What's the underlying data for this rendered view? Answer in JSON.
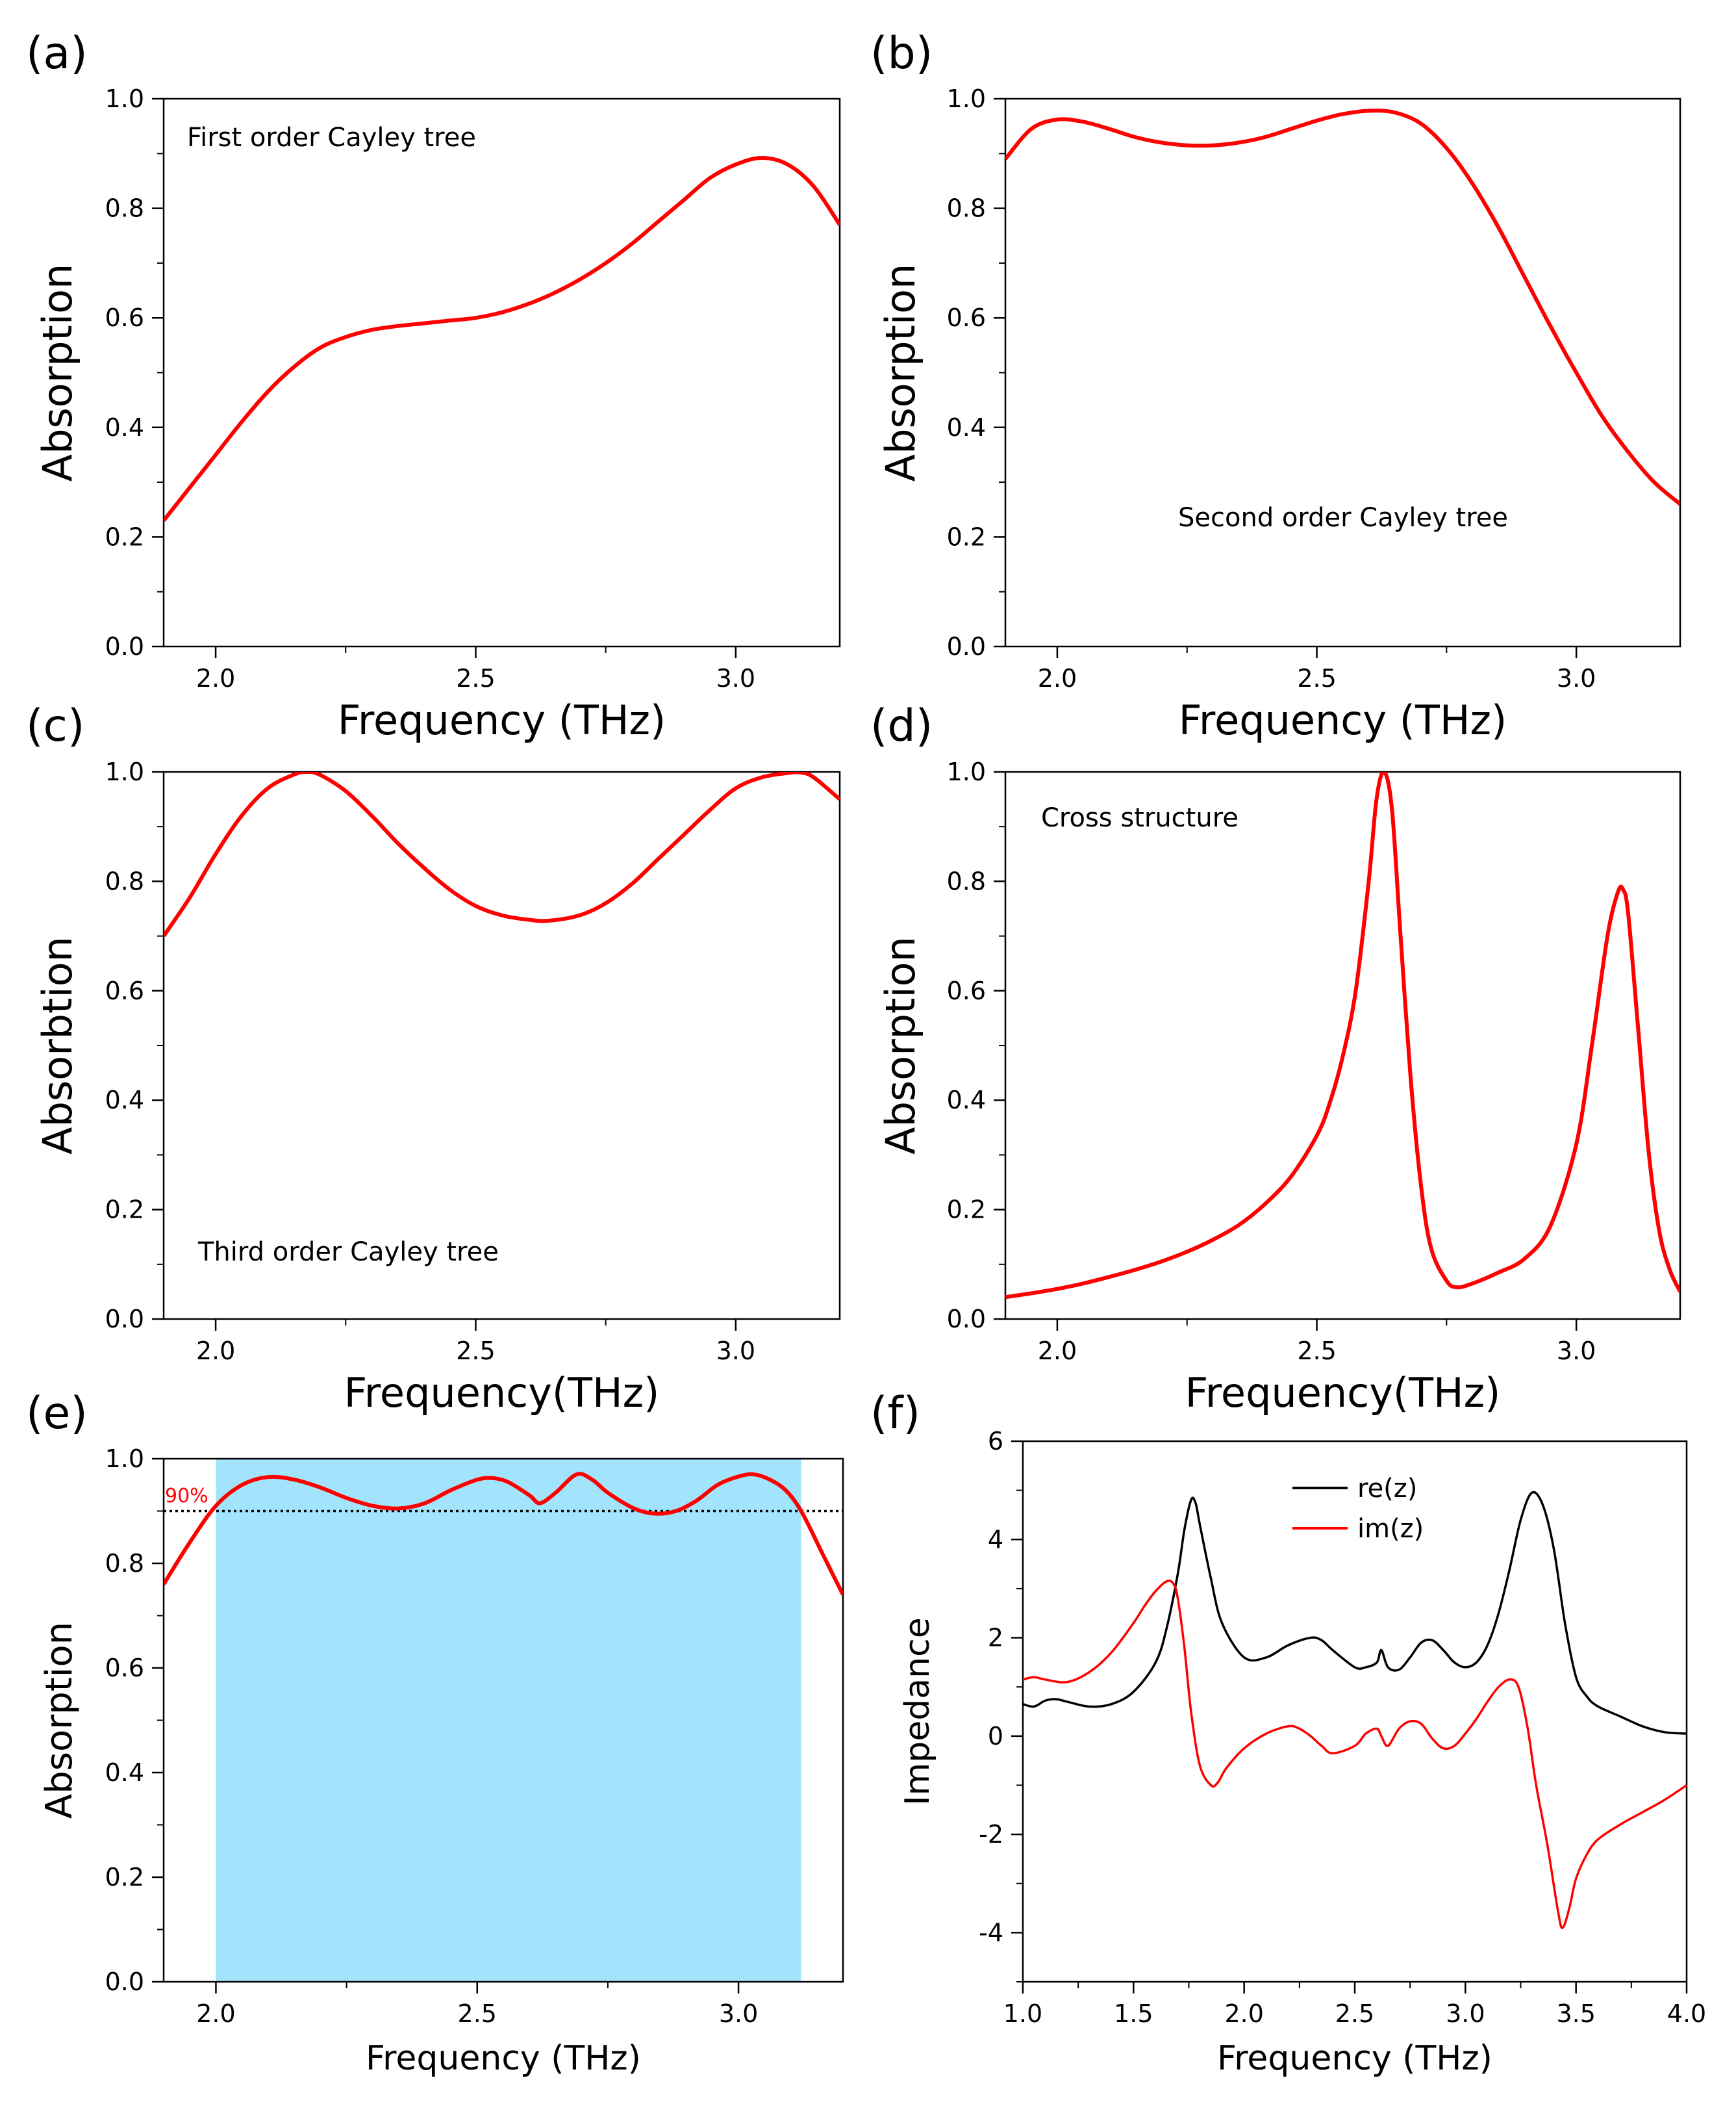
{
  "chart_data": [
    {
      "panel": "(a)",
      "type": "line",
      "annotation": "First order Cayley tree",
      "xlabel": "Frequency (THz)",
      "ylabel": "Absorption",
      "xlim": [
        1.9,
        3.2
      ],
      "ylim": [
        0.0,
        1.0
      ],
      "xticks": [
        "2.0",
        "2.5",
        "3.0"
      ],
      "yticks": [
        "0.0",
        "0.2",
        "0.4",
        "0.6",
        "0.8",
        "1.0"
      ],
      "xtick_values": [
        2.0,
        2.5,
        3.0
      ],
      "ytick_values": [
        0.0,
        0.2,
        0.4,
        0.6,
        0.8,
        1.0
      ],
      "series": [
        {
          "name": "absorption",
          "color": "#ff0000",
          "x": [
            1.9,
            1.95,
            2.0,
            2.05,
            2.1,
            2.15,
            2.2,
            2.25,
            2.3,
            2.35,
            2.4,
            2.45,
            2.5,
            2.55,
            2.6,
            2.65,
            2.7,
            2.75,
            2.8,
            2.85,
            2.9,
            2.95,
            3.0,
            3.05,
            3.1,
            3.15,
            3.2
          ],
          "y": [
            0.23,
            0.29,
            0.35,
            0.41,
            0.465,
            0.51,
            0.545,
            0.565,
            0.578,
            0.585,
            0.59,
            0.595,
            0.6,
            0.61,
            0.625,
            0.645,
            0.67,
            0.7,
            0.735,
            0.775,
            0.815,
            0.855,
            0.88,
            0.892,
            0.88,
            0.84,
            0.77
          ]
        }
      ]
    },
    {
      "panel": "(b)",
      "type": "line",
      "annotation": "Second order Cayley tree",
      "xlabel": "Frequency (THz)",
      "ylabel": "Absorption",
      "xlim": [
        1.9,
        3.2
      ],
      "ylim": [
        0.0,
        1.0
      ],
      "xticks": [
        "2.0",
        "2.5",
        "3.0"
      ],
      "yticks": [
        "0.0",
        "0.2",
        "0.4",
        "0.6",
        "0.8",
        "1.0"
      ],
      "xtick_values": [
        2.0,
        2.5,
        3.0
      ],
      "ytick_values": [
        0.0,
        0.2,
        0.4,
        0.6,
        0.8,
        1.0
      ],
      "series": [
        {
          "name": "absorption",
          "color": "#ff0000",
          "x": [
            1.9,
            1.95,
            2.0,
            2.05,
            2.1,
            2.15,
            2.2,
            2.25,
            2.3,
            2.35,
            2.4,
            2.45,
            2.5,
            2.55,
            2.6,
            2.65,
            2.7,
            2.75,
            2.8,
            2.85,
            2.9,
            2.95,
            3.0,
            3.05,
            3.1,
            3.15,
            3.2
          ],
          "y": [
            0.89,
            0.945,
            0.962,
            0.958,
            0.945,
            0.93,
            0.92,
            0.915,
            0.915,
            0.92,
            0.93,
            0.945,
            0.96,
            0.972,
            0.978,
            0.975,
            0.955,
            0.91,
            0.845,
            0.765,
            0.675,
            0.585,
            0.5,
            0.42,
            0.355,
            0.3,
            0.26
          ]
        }
      ]
    },
    {
      "panel": "(c)",
      "type": "line",
      "annotation": "Third order Cayley tree",
      "xlabel": "Frequency(THz)",
      "ylabel": "Absorbtion",
      "xlim": [
        1.9,
        3.2
      ],
      "ylim": [
        0.0,
        1.0
      ],
      "xticks": [
        "2.0",
        "2.5",
        "3.0"
      ],
      "yticks": [
        "0.0",
        "0.2",
        "0.4",
        "0.6",
        "0.8",
        "1.0"
      ],
      "xtick_values": [
        2.0,
        2.5,
        3.0
      ],
      "ytick_values": [
        0.0,
        0.2,
        0.4,
        0.6,
        0.8,
        1.0
      ],
      "series": [
        {
          "name": "absorption",
          "color": "#ff0000",
          "x": [
            1.9,
            1.95,
            2.0,
            2.05,
            2.1,
            2.15,
            2.175,
            2.2,
            2.25,
            2.3,
            2.35,
            2.4,
            2.45,
            2.5,
            2.55,
            2.6,
            2.64,
            2.7,
            2.75,
            2.8,
            2.85,
            2.9,
            2.95,
            3.0,
            3.05,
            3.1,
            3.125,
            3.15,
            3.2
          ],
          "y": [
            0.7,
            0.77,
            0.85,
            0.92,
            0.97,
            0.995,
            1.0,
            0.995,
            0.965,
            0.92,
            0.87,
            0.825,
            0.785,
            0.755,
            0.738,
            0.73,
            0.728,
            0.738,
            0.76,
            0.795,
            0.84,
            0.885,
            0.93,
            0.97,
            0.99,
            0.998,
            0.999,
            0.99,
            0.95
          ]
        }
      ]
    },
    {
      "panel": "(d)",
      "type": "line",
      "annotation": "Cross structure",
      "xlabel": "Frequency(THz)",
      "ylabel": "Absorption",
      "xlim": [
        1.9,
        3.2
      ],
      "ylim": [
        0.0,
        1.0
      ],
      "xticks": [
        "2.0",
        "2.5",
        "3.0"
      ],
      "yticks": [
        "0.0",
        "0.2",
        "0.4",
        "0.6",
        "0.8",
        "1.0"
      ],
      "xtick_values": [
        2.0,
        2.5,
        3.0
      ],
      "ytick_values": [
        0.0,
        0.2,
        0.4,
        0.6,
        0.8,
        1.0
      ],
      "series": [
        {
          "name": "absorption",
          "color": "#ff0000",
          "x": [
            1.9,
            1.95,
            2.0,
            2.05,
            2.1,
            2.15,
            2.2,
            2.25,
            2.3,
            2.35,
            2.4,
            2.45,
            2.5,
            2.525,
            2.55,
            2.575,
            2.6,
            2.615,
            2.63,
            2.645,
            2.66,
            2.68,
            2.7,
            2.72,
            2.75,
            2.77,
            2.8,
            2.85,
            2.9,
            2.95,
            3.0,
            3.03,
            3.06,
            3.08,
            3.09,
            3.1,
            3.12,
            3.14,
            3.16,
            3.18,
            3.2
          ],
          "y": [
            0.04,
            0.047,
            0.055,
            0.065,
            0.077,
            0.09,
            0.105,
            0.123,
            0.145,
            0.172,
            0.21,
            0.26,
            0.335,
            0.395,
            0.48,
            0.6,
            0.8,
            0.95,
            1.0,
            0.93,
            0.72,
            0.45,
            0.25,
            0.13,
            0.07,
            0.058,
            0.065,
            0.085,
            0.11,
            0.17,
            0.32,
            0.5,
            0.7,
            0.78,
            0.785,
            0.74,
            0.52,
            0.3,
            0.16,
            0.09,
            0.05
          ]
        }
      ]
    },
    {
      "panel": "(e)",
      "type": "line",
      "annotation": "90%",
      "xlabel": "Frequency (THz)",
      "ylabel": "Absorption",
      "xlim": [
        1.9,
        3.2
      ],
      "ylim": [
        0.0,
        1.0
      ],
      "xticks": [
        "2.0",
        "2.5",
        "3.0"
      ],
      "yticks": [
        "0.0",
        "0.2",
        "0.4",
        "0.6",
        "0.8",
        "1.0"
      ],
      "xtick_values": [
        2.0,
        2.5,
        3.0
      ],
      "ytick_values": [
        0.0,
        0.2,
        0.4,
        0.6,
        0.8,
        1.0
      ],
      "shaded_band": {
        "x_start": 2.0,
        "x_end": 3.12,
        "color": "#a2e4fb"
      },
      "threshold": {
        "y": 0.9,
        "label": "90%",
        "style": "dotted",
        "color": "#000000"
      },
      "series": [
        {
          "name": "absorption",
          "color": "#ff0000",
          "x": [
            1.9,
            1.95,
            2.0,
            2.05,
            2.1,
            2.15,
            2.2,
            2.25,
            2.3,
            2.35,
            2.4,
            2.45,
            2.5,
            2.53,
            2.56,
            2.6,
            2.62,
            2.65,
            2.69,
            2.72,
            2.75,
            2.8,
            2.84,
            2.88,
            2.92,
            2.96,
            3.0,
            3.03,
            3.06,
            3.09,
            3.12,
            3.16,
            3.2
          ],
          "y": [
            0.76,
            0.84,
            0.91,
            0.95,
            0.965,
            0.96,
            0.945,
            0.925,
            0.91,
            0.905,
            0.915,
            0.94,
            0.96,
            0.963,
            0.955,
            0.93,
            0.915,
            0.935,
            0.97,
            0.96,
            0.935,
            0.905,
            0.895,
            0.9,
            0.92,
            0.95,
            0.966,
            0.97,
            0.96,
            0.94,
            0.9,
            0.82,
            0.74
          ]
        }
      ]
    },
    {
      "panel": "(f)",
      "type": "line",
      "xlabel": "Frequency (THz)",
      "ylabel": "Impedance",
      "xlim": [
        1.0,
        4.0
      ],
      "ylim": [
        -5,
        6
      ],
      "xticks": [
        "1.0",
        "1.5",
        "2.0",
        "2.5",
        "3.0",
        "3.5",
        "4.0"
      ],
      "yticks": [
        "-4",
        "-2",
        "0",
        "2",
        "4",
        "6"
      ],
      "xtick_values": [
        1.0,
        1.5,
        2.0,
        2.5,
        3.0,
        3.5,
        4.0
      ],
      "ytick_values": [
        -4,
        -2,
        0,
        2,
        4,
        6
      ],
      "legend": [
        "re(z)",
        "im(z)"
      ],
      "series": [
        {
          "name": "re(z)",
          "color": "#000000",
          "x": [
            1.0,
            1.05,
            1.1,
            1.15,
            1.2,
            1.3,
            1.4,
            1.5,
            1.6,
            1.65,
            1.7,
            1.73,
            1.76,
            1.78,
            1.8,
            1.85,
            1.9,
            2.0,
            2.1,
            2.2,
            2.3,
            2.35,
            2.4,
            2.5,
            2.55,
            2.6,
            2.62,
            2.65,
            2.7,
            2.75,
            2.8,
            2.85,
            2.9,
            2.95,
            3.0,
            3.05,
            3.1,
            3.15,
            3.2,
            3.25,
            3.3,
            3.35,
            3.4,
            3.45,
            3.5,
            3.55,
            3.6,
            3.7,
            3.8,
            3.9,
            4.0
          ],
          "y": [
            0.65,
            0.6,
            0.72,
            0.75,
            0.7,
            0.6,
            0.65,
            0.9,
            1.5,
            2.2,
            3.3,
            4.2,
            4.8,
            4.75,
            4.3,
            3.2,
            2.3,
            1.6,
            1.6,
            1.85,
            2.0,
            1.95,
            1.75,
            1.4,
            1.4,
            1.5,
            1.75,
            1.4,
            1.35,
            1.6,
            1.9,
            1.95,
            1.75,
            1.5,
            1.4,
            1.5,
            1.85,
            2.5,
            3.4,
            4.4,
            4.95,
            4.7,
            3.8,
            2.3,
            1.2,
            0.8,
            0.6,
            0.4,
            0.2,
            0.08,
            0.05
          ]
        },
        {
          "name": "im(z)",
          "color": "#ff0000",
          "x": [
            1.0,
            1.05,
            1.1,
            1.2,
            1.3,
            1.4,
            1.5,
            1.55,
            1.6,
            1.65,
            1.68,
            1.7,
            1.73,
            1.76,
            1.8,
            1.85,
            1.88,
            1.92,
            2.0,
            2.1,
            2.2,
            2.25,
            2.3,
            2.35,
            2.4,
            2.5,
            2.55,
            2.6,
            2.62,
            2.65,
            2.7,
            2.75,
            2.8,
            2.85,
            2.9,
            2.95,
            3.0,
            3.05,
            3.1,
            3.15,
            3.2,
            3.24,
            3.28,
            3.32,
            3.37,
            3.42,
            3.44,
            3.47,
            3.5,
            3.55,
            3.6,
            3.7,
            3.8,
            3.9,
            4.0
          ],
          "y": [
            1.15,
            1.2,
            1.15,
            1.1,
            1.3,
            1.7,
            2.3,
            2.65,
            2.95,
            3.15,
            3.1,
            2.8,
            1.8,
            0.5,
            -0.6,
            -1.0,
            -0.95,
            -0.65,
            -0.25,
            0.05,
            0.2,
            0.15,
            0.0,
            -0.2,
            -0.35,
            -0.2,
            0.05,
            0.15,
            0.0,
            -0.2,
            0.15,
            0.3,
            0.25,
            -0.05,
            -0.25,
            -0.2,
            0.05,
            0.35,
            0.7,
            1.0,
            1.15,
            1.0,
            0.2,
            -1.0,
            -2.2,
            -3.6,
            -3.9,
            -3.5,
            -2.9,
            -2.4,
            -2.1,
            -1.8,
            -1.55,
            -1.3,
            -1.0
          ]
        }
      ]
    }
  ]
}
